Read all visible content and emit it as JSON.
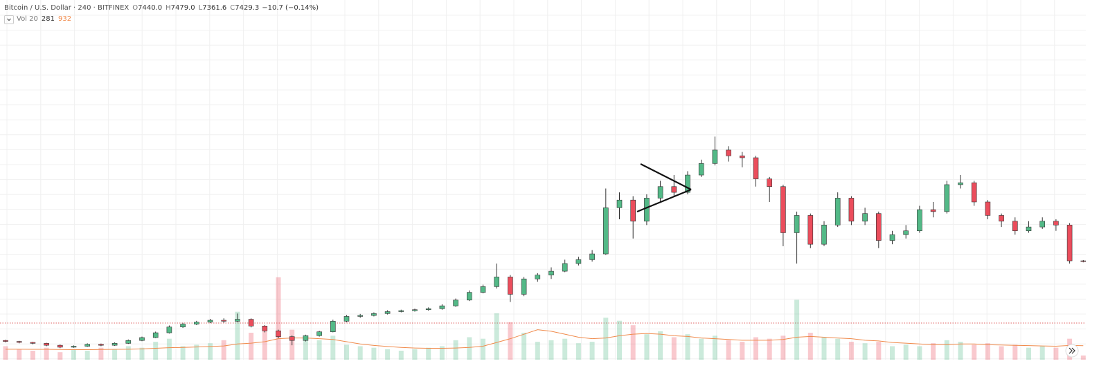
{
  "legend": {
    "symbol": "Bitcoin / U.S. Dollar · 240 · BITFINEX",
    "ohlc": [
      {
        "label": "O",
        "value": "7440.0"
      },
      {
        "label": "H",
        "value": "7479.0"
      },
      {
        "label": "L",
        "value": "7361.6"
      },
      {
        "label": "C",
        "value": "7429.3"
      }
    ],
    "change": "−10.7 (−0.14%)"
  },
  "volume_legend": {
    "name": "Vol 20",
    "volume": "281",
    "ma": "932"
  },
  "chart_data": {
    "type": "candlestick",
    "open": [
      3300,
      3250,
      3200,
      3150,
      3050,
      2950,
      3000,
      3100,
      3050,
      3150,
      3300,
      3450,
      3700,
      4000,
      4150,
      4250,
      4350,
      4300,
      4400,
      4050,
      3800,
      3500,
      3300,
      3550,
      3750,
      4300,
      4550,
      4600,
      4700,
      4800,
      4850,
      4900,
      4950,
      5100,
      5400,
      5800,
      6100,
      6600,
      5700,
      6500,
      6700,
      6900,
      7300,
      7500,
      7800,
      10200,
      10600,
      9500,
      10700,
      11300,
      11000,
      11900,
      12500,
      13200,
      12900,
      12800,
      11700,
      11300,
      8900,
      9800,
      8300,
      9300,
      10700,
      9500,
      9900,
      8500,
      8800,
      9000,
      10100,
      10000,
      11400,
      11500,
      10500,
      9800,
      9500,
      9000,
      9200,
      9500,
      9300,
      7440
    ],
    "high": [
      3340,
      3280,
      3230,
      3180,
      3090,
      3040,
      3150,
      3140,
      3200,
      3350,
      3500,
      3760,
      4080,
      4220,
      4320,
      4420,
      4450,
      4700,
      4450,
      4100,
      3860,
      3560,
      3600,
      3800,
      4380,
      4620,
      4680,
      4760,
      4870,
      4900,
      4950,
      5020,
      5180,
      5480,
      5900,
      6200,
      7300,
      6700,
      6600,
      6800,
      7100,
      7500,
      7650,
      8000,
      11200,
      11000,
      10800,
      10900,
      11600,
      11900,
      12100,
      12700,
      13900,
      13400,
      13100,
      12900,
      11800,
      11400,
      10000,
      9900,
      9500,
      11000,
      10800,
      10200,
      10000,
      9000,
      9300,
      10300,
      10500,
      11600,
      11900,
      11600,
      10600,
      9900,
      9700,
      9500,
      9700,
      9600,
      9400,
      7479
    ],
    "low": [
      3200,
      3150,
      3100,
      3000,
      2900,
      2920,
      2970,
      3000,
      3020,
      3120,
      3260,
      3420,
      3660,
      3950,
      4100,
      4200,
      4220,
      4250,
      3980,
      3720,
      3420,
      3050,
      3250,
      3500,
      3720,
      4250,
      4480,
      4550,
      4650,
      4760,
      4800,
      4850,
      4900,
      5050,
      5350,
      5750,
      6000,
      5300,
      5600,
      6350,
      6500,
      6850,
      7200,
      7400,
      7750,
      9600,
      8600,
      9300,
      10500,
      10800,
      10900,
      11800,
      12400,
      12600,
      12300,
      11300,
      10500,
      8200,
      7300,
      8100,
      8200,
      9200,
      9300,
      9300,
      8100,
      8300,
      8600,
      8900,
      9700,
      9900,
      11200,
      10300,
      9600,
      9200,
      8800,
      8900,
      9100,
      9000,
      7300,
      7361.6
    ],
    "close": [
      3250,
      3200,
      3150,
      3050,
      2950,
      3000,
      3100,
      3050,
      3150,
      3300,
      3450,
      3700,
      4000,
      4150,
      4250,
      4350,
      4300,
      4400,
      4050,
      3800,
      3500,
      3300,
      3550,
      3750,
      4300,
      4550,
      4600,
      4700,
      4800,
      4850,
      4900,
      4950,
      5100,
      5400,
      5800,
      6100,
      6600,
      5700,
      6500,
      6700,
      6900,
      7300,
      7500,
      7800,
      10200,
      10600,
      9500,
      10700,
      11300,
      11000,
      11900,
      12500,
      13200,
      12900,
      12800,
      11700,
      11300,
      8900,
      9800,
      8300,
      9300,
      10700,
      9500,
      9900,
      8500,
      8800,
      9000,
      10100,
      10000,
      11400,
      11500,
      10500,
      9800,
      9500,
      9000,
      9200,
      9500,
      9300,
      7440,
      7429.3
    ],
    "ylim": [
      2300,
      21000
    ],
    "volume": [
      900,
      700,
      600,
      800,
      500,
      700,
      600,
      800,
      700,
      900,
      800,
      1200,
      1400,
      900,
      1000,
      1100,
      1300,
      3200,
      1800,
      2200,
      5500,
      2000,
      1400,
      1300,
      1600,
      1000,
      900,
      800,
      700,
      600,
      700,
      800,
      900,
      1300,
      1500,
      1400,
      3100,
      2500,
      1800,
      1200,
      1300,
      1400,
      1100,
      1200,
      2800,
      2600,
      2300,
      1700,
      1900,
      1500,
      1700,
      1400,
      1600,
      1300,
      1200,
      1500,
      1400,
      1600,
      4000,
      1800,
      1500,
      1400,
      1200,
      1100,
      1200,
      900,
      1000,
      900,
      1100,
      1300,
      1200,
      1000,
      1100,
      900,
      1000,
      800,
      900,
      800,
      1400,
      281
    ],
    "volume_ma": [
      700,
      700,
      690,
      690,
      680,
      670,
      670,
      680,
      690,
      700,
      720,
      760,
      800,
      820,
      850,
      880,
      920,
      1050,
      1100,
      1200,
      1400,
      1450,
      1450,
      1400,
      1350,
      1200,
      1050,
      950,
      880,
      820,
      780,
      760,
      760,
      780,
      820,
      900,
      1150,
      1400,
      1700,
      2000,
      1900,
      1700,
      1500,
      1400,
      1450,
      1600,
      1700,
      1750,
      1700,
      1600,
      1550,
      1450,
      1400,
      1350,
      1300,
      1300,
      1300,
      1350,
      1500,
      1550,
      1500,
      1450,
      1400,
      1300,
      1250,
      1150,
      1100,
      1050,
      1000,
      1000,
      1050,
      1050,
      1000,
      980,
      960,
      940,
      920,
      900,
      950,
      932
    ],
    "volume_ylim": [
      0,
      6000
    ],
    "up_color": "#53b987",
    "down_color": "#eb4d5c",
    "ma_color": "#f08a4b"
  }
}
